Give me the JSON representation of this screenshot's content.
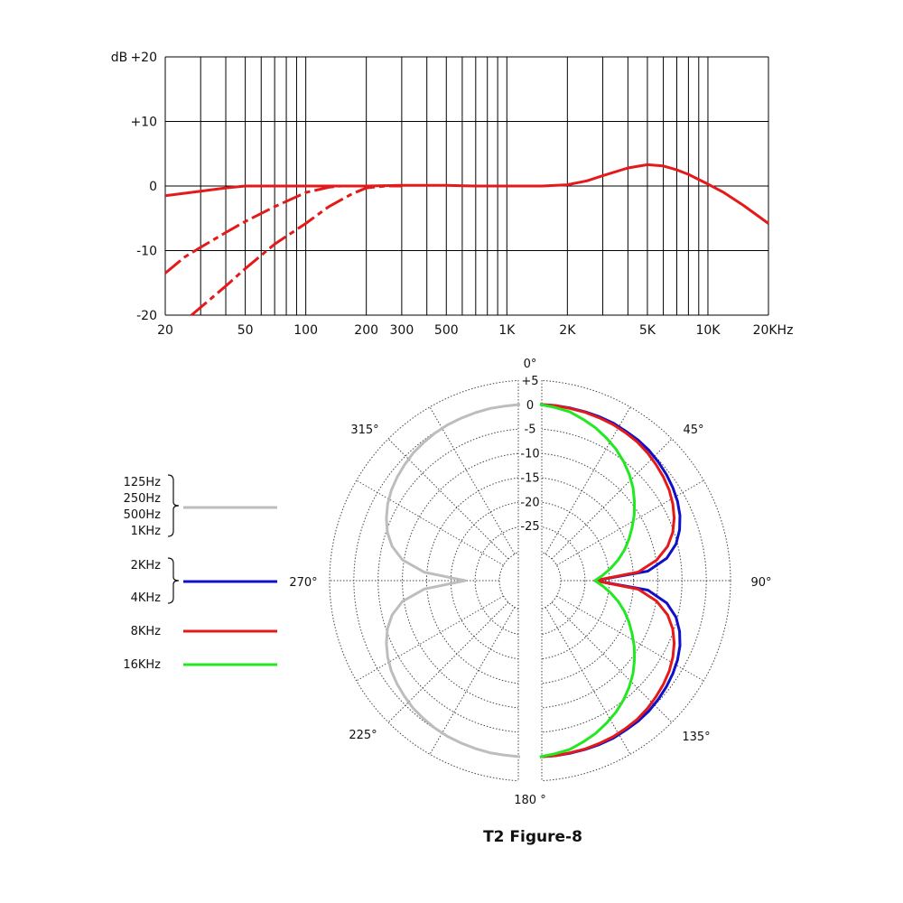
{
  "title": "T2 Figure-8",
  "colors": {
    "response": "#e41a1a",
    "low": "#bdbdbd",
    "mid": "#1010c8",
    "high8k": "#e41a1a",
    "high16k": "#22e822"
  },
  "chart_data": [
    {
      "type": "line",
      "x_scale": "log",
      "xlim": [
        20,
        20000
      ],
      "ylim": [
        -20,
        20
      ],
      "ylabel": "dB",
      "x_ticks": [
        {
          "value": 20,
          "label": "20"
        },
        {
          "value": 50,
          "label": "50"
        },
        {
          "value": 100,
          "label": "100"
        },
        {
          "value": 200,
          "label": "200"
        },
        {
          "value": 300,
          "label": "300"
        },
        {
          "value": 500,
          "label": "500"
        },
        {
          "value": 1000,
          "label": "1K"
        },
        {
          "value": 2000,
          "label": "2K"
        },
        {
          "value": 5000,
          "label": "5K"
        },
        {
          "value": 10000,
          "label": "10K"
        },
        {
          "value": 20000,
          "label": "20KHz"
        }
      ],
      "y_ticks": [
        {
          "value": 20,
          "label": "+20"
        },
        {
          "value": 10,
          "label": "+10"
        },
        {
          "value": 0,
          "label": "0"
        },
        {
          "value": -10,
          "label": "-10"
        },
        {
          "value": -20,
          "label": "-20"
        }
      ],
      "grid": true,
      "series": [
        {
          "style": "solid",
          "color": "#e41a1a",
          "points": [
            [
              20,
              -1.5
            ],
            [
              30,
              -0.8
            ],
            [
              40,
              -0.3
            ],
            [
              50,
              0
            ],
            [
              100,
              0
            ],
            [
              200,
              0
            ],
            [
              300,
              0.1
            ],
            [
              500,
              0.1
            ],
            [
              700,
              0
            ],
            [
              1000,
              0
            ],
            [
              1500,
              0
            ],
            [
              2000,
              0.2
            ],
            [
              2500,
              0.8
            ],
            [
              3000,
              1.6
            ],
            [
              4000,
              2.8
            ],
            [
              5000,
              3.3
            ],
            [
              6000,
              3.1
            ],
            [
              7000,
              2.5
            ],
            [
              8000,
              1.8
            ],
            [
              10000,
              0.3
            ],
            [
              12000,
              -1
            ],
            [
              15000,
              -3
            ],
            [
              20000,
              -5.8
            ]
          ]
        },
        {
          "style": "dashed",
          "color": "#e41a1a",
          "points": [
            [
              20,
              -13.5
            ],
            [
              25,
              -11
            ],
            [
              30,
              -9.5
            ],
            [
              40,
              -7.2
            ],
            [
              50,
              -5.5
            ],
            [
              70,
              -3.2
            ],
            [
              100,
              -1
            ],
            [
              130,
              -0.2
            ],
            [
              150,
              0
            ]
          ]
        },
        {
          "style": "dashed",
          "color": "#e41a1a",
          "points": [
            [
              27,
              -20
            ],
            [
              30,
              -18.8
            ],
            [
              40,
              -15.5
            ],
            [
              50,
              -12.8
            ],
            [
              70,
              -9
            ],
            [
              100,
              -5.8
            ],
            [
              130,
              -3.2
            ],
            [
              170,
              -1.2
            ],
            [
              200,
              -0.3
            ],
            [
              250,
              0
            ],
            [
              300,
              0
            ]
          ]
        }
      ]
    },
    {
      "type": "polar",
      "title": "T2 Figure-8",
      "r_ticks": [
        {
          "value": 5,
          "label": "+5"
        },
        {
          "value": 0,
          "label": "0"
        },
        {
          "value": -5,
          "label": "-5"
        },
        {
          "value": -10,
          "label": "-10"
        },
        {
          "value": -15,
          "label": "-15"
        },
        {
          "value": -20,
          "label": "-20"
        },
        {
          "value": -25,
          "label": "-25"
        }
      ],
      "rlim": [
        -30,
        5
      ],
      "angle_labels": [
        {
          "angle": 0,
          "label": "0°"
        },
        {
          "angle": 45,
          "label": "45°"
        },
        {
          "angle": 90,
          "label": "90°"
        },
        {
          "angle": 135,
          "label": "135°"
        },
        {
          "angle": 180,
          "label": "180 °"
        },
        {
          "angle": 225,
          "label": "225°"
        },
        {
          "angle": 270,
          "label": "270°"
        },
        {
          "angle": 315,
          "label": "315°"
        }
      ],
      "legend": [
        {
          "labels": [
            "125Hz",
            "250Hz",
            "500Hz",
            "1KHz"
          ],
          "color": "#bdbdbd"
        },
        {
          "labels": [
            "2KHz",
            "4KHz"
          ],
          "color": "#1010c8"
        },
        {
          "labels": [
            "8KHz"
          ],
          "color": "#e41a1a"
        },
        {
          "labels": [
            "16KHz"
          ],
          "color": "#22e822"
        }
      ],
      "series": [
        {
          "name": "125Hz-1KHz",
          "color": "#bdbdbd",
          "side": "left",
          "points": [
            [
              0,
              0
            ],
            [
              5,
              -0.2
            ],
            [
              10,
              -0.3
            ],
            [
              15,
              -0.5
            ],
            [
              20,
              -0.7
            ],
            [
              25,
              -0.9
            ],
            [
              30,
              -1.2
            ],
            [
              35,
              -1.6
            ],
            [
              40,
              -2
            ],
            [
              45,
              -2.6
            ],
            [
              50,
              -3.2
            ],
            [
              55,
              -3.9
            ],
            [
              60,
              -4.8
            ],
            [
              65,
              -5.9
            ],
            [
              70,
              -7.2
            ],
            [
              75,
              -9
            ],
            [
              80,
              -11.7
            ],
            [
              85,
              -16.5
            ],
            [
              90,
              -25
            ],
            [
              95,
              -16.5
            ],
            [
              100,
              -11.7
            ],
            [
              105,
              -9
            ],
            [
              110,
              -7.2
            ],
            [
              115,
              -5.9
            ],
            [
              120,
              -4.8
            ],
            [
              125,
              -3.9
            ],
            [
              130,
              -3.2
            ],
            [
              135,
              -2.6
            ],
            [
              140,
              -2
            ],
            [
              145,
              -1.6
            ],
            [
              150,
              -1.2
            ],
            [
              155,
              -0.9
            ],
            [
              160,
              -0.7
            ],
            [
              165,
              -0.5
            ],
            [
              170,
              -0.3
            ],
            [
              175,
              -0.2
            ],
            [
              180,
              0
            ]
          ]
        },
        {
          "name": "2KHz-4KHz",
          "color": "#1010c8",
          "side": "right",
          "points": [
            [
              0,
              0
            ],
            [
              5,
              -0.1
            ],
            [
              10,
              -0.2
            ],
            [
              15,
              -0.3
            ],
            [
              20,
              -0.4
            ],
            [
              25,
              -0.5
            ],
            [
              30,
              -0.8
            ],
            [
              35,
              -1
            ],
            [
              40,
              -1.3
            ],
            [
              45,
              -1.8
            ],
            [
              50,
              -2.3
            ],
            [
              55,
              -2.9
            ],
            [
              60,
              -3.6
            ],
            [
              65,
              -4.5
            ],
            [
              70,
              -5.7
            ],
            [
              75,
              -7.3
            ],
            [
              80,
              -9.8
            ],
            [
              85,
              -14
            ],
            [
              90,
              -25
            ],
            [
              95,
              -14
            ],
            [
              100,
              -9.8
            ],
            [
              105,
              -7.3
            ],
            [
              110,
              -5.7
            ],
            [
              115,
              -4.5
            ],
            [
              120,
              -3.6
            ],
            [
              125,
              -2.9
            ],
            [
              130,
              -2.3
            ],
            [
              135,
              -1.8
            ],
            [
              140,
              -1.3
            ],
            [
              145,
              -1
            ],
            [
              150,
              -0.8
            ],
            [
              155,
              -0.5
            ],
            [
              160,
              -0.4
            ],
            [
              165,
              -0.3
            ],
            [
              170,
              -0.2
            ],
            [
              175,
              -0.1
            ],
            [
              180,
              0
            ]
          ]
        },
        {
          "name": "8KHz",
          "color": "#e41a1a",
          "side": "right",
          "points": [
            [
              0,
              0
            ],
            [
              5,
              -0.1
            ],
            [
              10,
              -0.3
            ],
            [
              15,
              -0.4
            ],
            [
              20,
              -0.6
            ],
            [
              25,
              -0.8
            ],
            [
              30,
              -1.1
            ],
            [
              35,
              -1.4
            ],
            [
              40,
              -1.9
            ],
            [
              45,
              -2.5
            ],
            [
              50,
              -3.1
            ],
            [
              55,
              -3.8
            ],
            [
              60,
              -4.7
            ],
            [
              65,
              -5.8
            ],
            [
              70,
              -7.2
            ],
            [
              75,
              -9.1
            ],
            [
              80,
              -11.9
            ],
            [
              85,
              -16
            ],
            [
              90,
              -25
            ],
            [
              95,
              -16
            ],
            [
              100,
              -11.9
            ],
            [
              105,
              -9.1
            ],
            [
              110,
              -7.2
            ],
            [
              115,
              -5.8
            ],
            [
              120,
              -4.7
            ],
            [
              125,
              -3.8
            ],
            [
              130,
              -3.1
            ],
            [
              135,
              -2.5
            ],
            [
              140,
              -1.9
            ],
            [
              145,
              -1.4
            ],
            [
              150,
              -1.1
            ],
            [
              155,
              -0.8
            ],
            [
              160,
              -0.6
            ],
            [
              165,
              -0.4
            ],
            [
              170,
              -0.3
            ],
            [
              175,
              -0.1
            ],
            [
              180,
              0
            ]
          ]
        },
        {
          "name": "16KHz",
          "color": "#22e822",
          "side": "right",
          "points": [
            [
              0,
              0
            ],
            [
              5,
              -0.5
            ],
            [
              10,
              -1
            ],
            [
              15,
              -1.9
            ],
            [
              20,
              -2.8
            ],
            [
              25,
              -3.9
            ],
            [
              30,
              -5
            ],
            [
              35,
              -6.3
            ],
            [
              40,
              -7.7
            ],
            [
              45,
              -9.2
            ],
            [
              50,
              -10.9
            ],
            [
              55,
              -12.6
            ],
            [
              60,
              -14.4
            ],
            [
              65,
              -16.1
            ],
            [
              70,
              -17.8
            ],
            [
              75,
              -19.6
            ],
            [
              80,
              -21.5
            ],
            [
              85,
              -23.3
            ],
            [
              90,
              -25
            ],
            [
              95,
              -23.3
            ],
            [
              100,
              -21.5
            ],
            [
              105,
              -19.6
            ],
            [
              110,
              -17.8
            ],
            [
              115,
              -16.1
            ],
            [
              120,
              -14.4
            ],
            [
              125,
              -12.6
            ],
            [
              130,
              -10.9
            ],
            [
              135,
              -9.2
            ],
            [
              140,
              -7.7
            ],
            [
              145,
              -6.3
            ],
            [
              150,
              -5
            ],
            [
              155,
              -3.9
            ],
            [
              160,
              -2.8
            ],
            [
              165,
              -1.9
            ],
            [
              170,
              -1
            ],
            [
              175,
              -0.5
            ],
            [
              180,
              0
            ]
          ]
        }
      ]
    }
  ]
}
